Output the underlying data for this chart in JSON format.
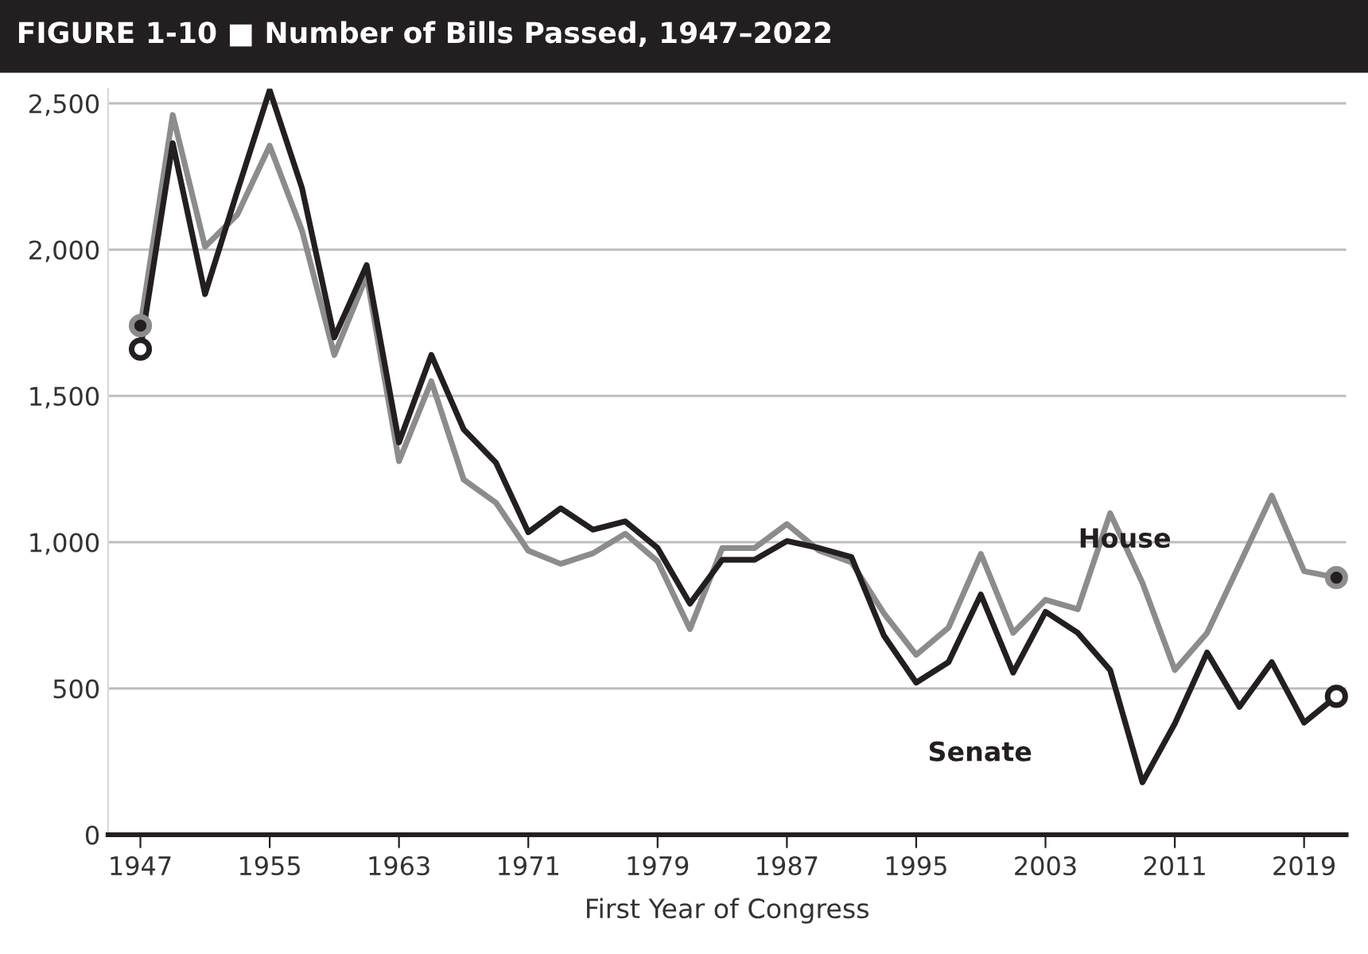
{
  "chart_data": {
    "type": "line",
    "title": "FIGURE 1-10 ■ Number of Bills Passed, 1947–2022",
    "xlabel": "First Year of Congress",
    "x": [
      1947,
      1949,
      1951,
      1953,
      1955,
      1957,
      1959,
      1961,
      1963,
      1965,
      1967,
      1969,
      1971,
      1973,
      1975,
      1977,
      1979,
      1981,
      1983,
      1985,
      1987,
      1989,
      1991,
      1993,
      1995,
      1997,
      1999,
      2001,
      2003,
      2005,
      2007,
      2009,
      2011,
      2013,
      2015,
      2017,
      2019,
      2021
    ],
    "series": [
      {
        "name": "House",
        "color": "#8c8c8c",
        "values": [
          1740,
          2460,
          2010,
          2120,
          2355,
          2065,
          1640,
          1910,
          1277,
          1550,
          1214,
          1135,
          971,
          926,
          962,
          1029,
          935,
          703,
          980,
          980,
          1062,
          971,
          931,
          757,
          615,
          708,
          960,
          690,
          803,
          771,
          1099,
          861,
          563,
          690,
          924,
          1159,
          901,
          879
        ]
      },
      {
        "name": "Senate",
        "color": "#231f20",
        "values": [
          1660,
          2364,
          1848,
          2200,
          2545,
          2210,
          1700,
          1947,
          1341,
          1640,
          1386,
          1272,
          1034,
          1116,
          1043,
          1071,
          980,
          790,
          940,
          940,
          1004,
          980,
          949,
          681,
          520,
          590,
          821,
          554,
          762,
          690,
          563,
          179,
          380,
          623,
          437,
          590,
          383,
          473
        ]
      }
    ],
    "xlim": [
      1945,
      2021.6
    ],
    "xticks": [
      1947,
      1955,
      1963,
      1971,
      1979,
      1987,
      1995,
      2003,
      2011,
      2019
    ],
    "ylim": [
      0,
      2550
    ],
    "yticks": [
      {
        "value": 0,
        "label": "0"
      },
      {
        "value": 500,
        "label": "500"
      },
      {
        "value": 1000,
        "label": "1,000"
      },
      {
        "value": 1500,
        "label": "1,500"
      },
      {
        "value": 2000,
        "label": "2,000"
      },
      {
        "value": 2500,
        "label": "2,500"
      }
    ],
    "grid": "y",
    "legend": false,
    "line_style": "solid"
  }
}
